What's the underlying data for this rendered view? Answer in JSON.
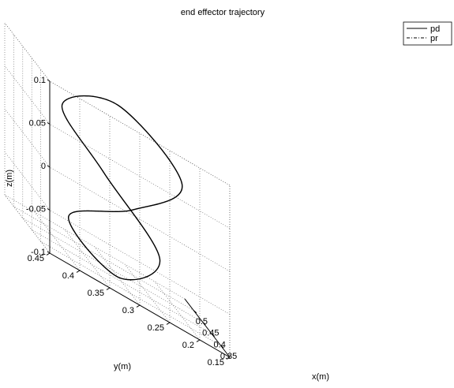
{
  "chart_data": {
    "type": "line3d",
    "title": "end effector trajectory",
    "xlabel": "x(m)",
    "ylabel": "y(m)",
    "zlabel": "z(m)",
    "grid": true,
    "legend_position": "top-right, outside plot area",
    "xlim": [
      0.3,
      0.55
    ],
    "ylim": [
      0.15,
      0.45
    ],
    "zlim": [
      -0.1,
      0.1
    ],
    "x_ticks": [
      "0.35",
      "0.4",
      "0.45",
      "0.5"
    ],
    "y_ticks": [
      "0.15",
      "0.2",
      "0.25",
      "0.3",
      "0.35",
      "0.4",
      "0.45"
    ],
    "z_ticks": [
      "-0.1",
      "-0.05",
      "0",
      "0.05",
      "0.1"
    ],
    "series": [
      {
        "name": "pd",
        "line_style": "solid",
        "color": "#000000",
        "description_values": {
          "shape": "circle",
          "points_xyz": [
            [
              0.42,
              0.3,
              -0.1
            ],
            [
              0.482,
              0.212,
              -0.06
            ],
            [
              0.5,
              0.3,
              0.0
            ],
            [
              0.438,
              0.388,
              0.06
            ],
            [
              0.42,
              0.3,
              0.1
            ],
            [
              0.358,
              0.212,
              0.06
            ],
            [
              0.34,
              0.3,
              0.0
            ],
            [
              0.402,
              0.388,
              -0.06
            ],
            [
              0.42,
              0.3,
              -0.1
            ]
          ]
        }
      },
      {
        "name": "pr",
        "line_style": "dash-dot",
        "color": "#000000",
        "description_values": {
          "shape": "circle (coincides with pd)",
          "points_xyz": [
            [
              0.42,
              0.3,
              -0.1
            ],
            [
              0.482,
              0.212,
              -0.06
            ],
            [
              0.5,
              0.3,
              0.0
            ],
            [
              0.438,
              0.388,
              0.06
            ],
            [
              0.42,
              0.3,
              0.1
            ],
            [
              0.358,
              0.212,
              0.06
            ],
            [
              0.34,
              0.3,
              0.0
            ],
            [
              0.402,
              0.388,
              -0.06
            ],
            [
              0.42,
              0.3,
              -0.1
            ]
          ]
        }
      }
    ]
  }
}
